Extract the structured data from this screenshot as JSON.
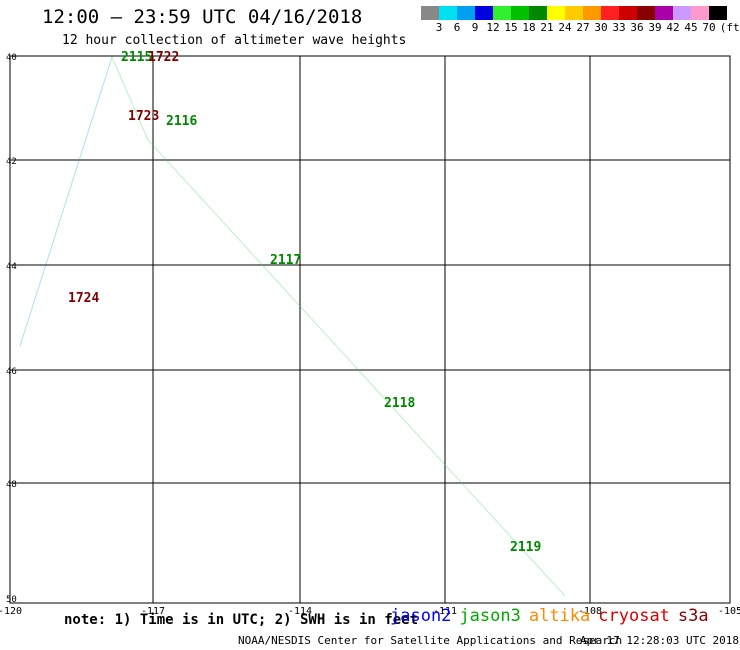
{
  "header": {
    "title": "12:00 – 23:59 UTC 04/16/2018",
    "subtitle": "12 hour collection of altimeter wave heights"
  },
  "legend": {
    "colors": [
      "#888888",
      "#00e0f0",
      "#00a0f0",
      "#0000e0",
      "#30f030",
      "#00c000",
      "#008800",
      "#ffff00",
      "#ffcc00",
      "#ff9900",
      "#ff2020",
      "#cc0000",
      "#880000",
      "#aa00aa",
      "#cc99ff",
      "#ff99cc",
      "#000000"
    ],
    "labels": [
      "3",
      "6",
      "9",
      "12",
      "15",
      "18",
      "21",
      "24",
      "27",
      "30",
      "33",
      "36",
      "39",
      "42",
      "45",
      "70",
      "(ft)"
    ]
  },
  "axes": {
    "x_ticks": [
      "-120",
      "-117",
      "-114",
      "-111",
      "-108",
      "-105"
    ],
    "y_ticks": [
      "40",
      "42",
      "44",
      "46",
      "48",
      "50"
    ]
  },
  "tracks": [
    {
      "satellite": "jason2",
      "color": "#0000aa"
    },
    {
      "satellite": "jason3",
      "color": "#00aa00"
    }
  ],
  "markers": [
    {
      "label": "2115",
      "color": "#008800"
    },
    {
      "label": "1722",
      "color": "#800000"
    },
    {
      "label": "1723",
      "color": "#800000"
    },
    {
      "label": "2116",
      "color": "#008800"
    },
    {
      "label": "2117",
      "color": "#008800"
    },
    {
      "label": "1724",
      "color": "#800000"
    },
    {
      "label": "2118",
      "color": "#008800"
    },
    {
      "label": "2119",
      "color": "#008800"
    }
  ],
  "footer": {
    "note": "note: 1) Time is in UTC; 2) SWH is in feet",
    "sats": [
      {
        "name": "jason2",
        "color": "#0000ff"
      },
      {
        "name": "jason3",
        "color": "#00aa00"
      },
      {
        "name": "altika",
        "color": "#ff8800"
      },
      {
        "name": "cryosat",
        "color": "#dd0000"
      },
      {
        "name": "s3a",
        "color": "#880000"
      }
    ],
    "credit": "NOAA/NESDIS Center for Satellite Applications and Research",
    "timestamp": "Apr 17 12:28:03 UTC 2018"
  }
}
